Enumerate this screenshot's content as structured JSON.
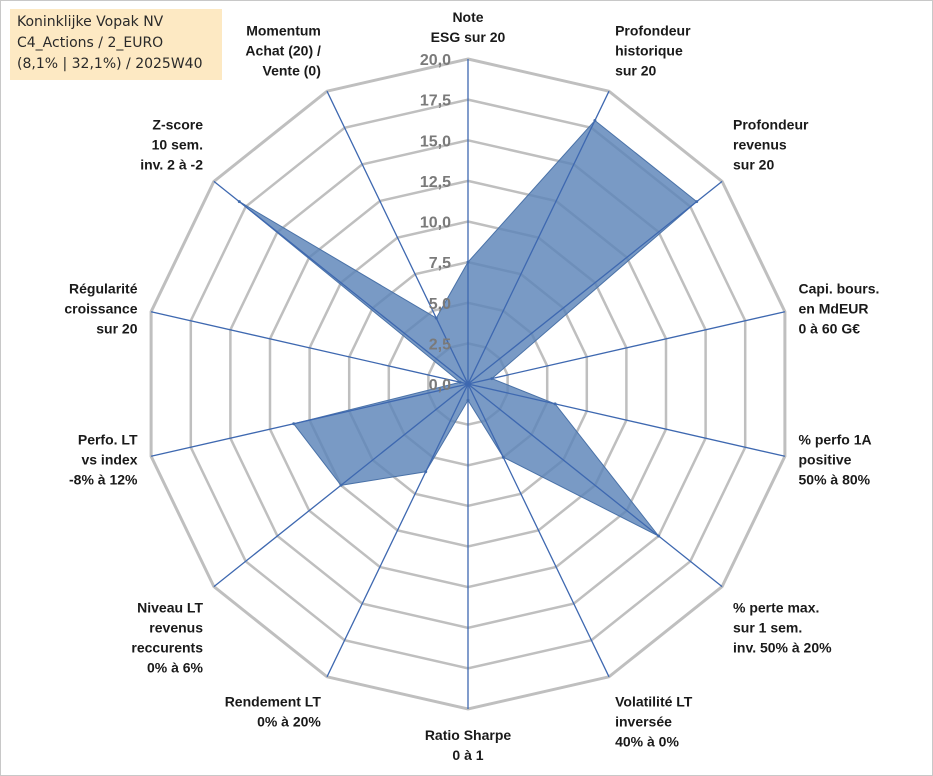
{
  "chart_data": {
    "type": "radar",
    "title_lines": [
      "Koninklijke Vopak NV",
      "C4_Actions / 2_EURO",
      "(8,1% | 32,1%) / 2025W40"
    ],
    "axis_min": 0,
    "axis_max": 20,
    "tick_step": 2.5,
    "tick_labels": [
      "0,0",
      "2,5",
      "5,0",
      "7,5",
      "10,0",
      "12,5",
      "15,0",
      "17,5",
      "20,0"
    ],
    "axes": [
      {
        "label": [
          "Note",
          "ESG sur 20"
        ],
        "value": 7.5
      },
      {
        "label": [
          "Profondeur",
          "historique",
          "sur 20"
        ],
        "value": 18.0
      },
      {
        "label": [
          "Profondeur",
          "revenus",
          "sur 20"
        ],
        "value": 18.0
      },
      {
        "label": [
          "Capi. bours.",
          "en MdEUR",
          "0 à 60 G€"
        ],
        "value": 1.5
      },
      {
        "label": [
          "% perfo 1A",
          "positive",
          "50% à 80%"
        ],
        "value": 5.5
      },
      {
        "label": [
          "% perte max.",
          "sur 1 sem.",
          "inv. 50% à 20%"
        ],
        "value": 15.0
      },
      {
        "label": [
          "Volatilité LT",
          "inversée",
          "40% à 0%"
        ],
        "value": 5.0
      },
      {
        "label": [
          "Ratio Sharpe",
          "0 à 1"
        ],
        "value": 1.0
      },
      {
        "label": [
          "Rendement LT",
          "0% à 20%"
        ],
        "value": 6.0
      },
      {
        "label": [
          "Niveau LT",
          "revenus",
          "reccurents",
          "0% à 6%"
        ],
        "value": 10.0
      },
      {
        "label": [
          "Perfo. LT",
          "vs index",
          "-8% à 12%"
        ],
        "value": 11.0
      },
      {
        "label": [
          "Régularité",
          "croissance",
          "sur 20"
        ],
        "value": 0.5
      },
      {
        "label": [
          "Z-score",
          "10 sem.",
          "inv. 2 à -2"
        ],
        "value": 18.0
      },
      {
        "label": [
          "Momentum",
          "Achat (20) /",
          "Vente (0)"
        ],
        "value": 4.5
      }
    ],
    "series_color": "#5b84b8",
    "spoke_color": "#3e68b0",
    "grid_color": "#bfbfbf"
  }
}
